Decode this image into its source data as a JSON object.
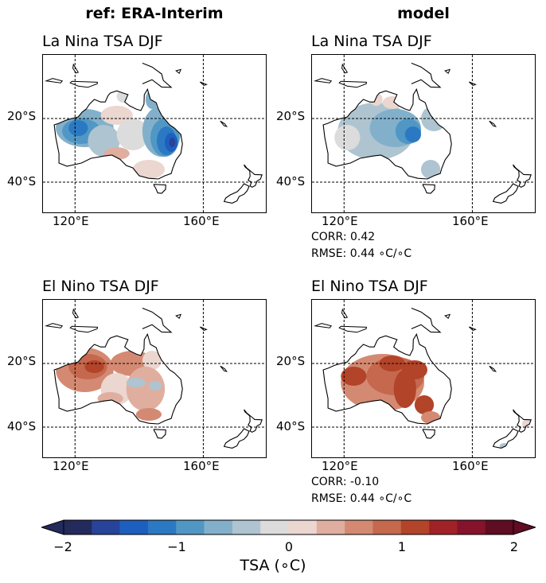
{
  "columns": {
    "ref": "ref: ERA-Interim",
    "model": "model"
  },
  "panels": [
    {
      "id": "ref-lanina",
      "title": "La Nina TSA DJF",
      "pattern": "lanina_ref"
    },
    {
      "id": "model-lanina",
      "title": "La Nina TSA DJF",
      "pattern": "lanina_model",
      "corr": "CORR: 0.42",
      "rmse": "RMSE: 0.44 ∘C/∘C"
    },
    {
      "id": "ref-elnino",
      "title": "El Nino TSA DJF",
      "pattern": "elnino_ref"
    },
    {
      "id": "model-elnino",
      "title": "El Nino TSA DJF",
      "pattern": "elnino_model",
      "corr": "CORR: -0.10",
      "rmse": "RMSE: 0.44 ∘C/∘C"
    }
  ],
  "axes": {
    "yticks": [
      "20°S",
      "40°S"
    ],
    "xticks": [
      "120°E",
      "160°E"
    ]
  },
  "colorbar": {
    "label": "TSA (∘C)",
    "ticks": [
      "−2",
      "−1",
      "0",
      "1",
      "2"
    ],
    "levels": [
      -2,
      -1.75,
      -1.5,
      -1.25,
      -1,
      -0.75,
      -0.5,
      -0.25,
      0,
      0.25,
      0.5,
      0.75,
      1,
      1.25,
      1.5,
      1.75,
      2
    ],
    "colors": [
      "#232a5c",
      "#27449a",
      "#1d5fbf",
      "#2b79c2",
      "#5197c5",
      "#82b0cb",
      "#aec4d1",
      "#dcdcdc",
      "#ebd6d0",
      "#e0ae9f",
      "#d48a72",
      "#c5684d",
      "#b24429",
      "#a02227",
      "#85132b",
      "#5e0d22"
    ]
  },
  "chart_data": {
    "type": "heatmap",
    "variable": "TSA",
    "unit": "∘C",
    "region": {
      "lon": [
        110,
        180
      ],
      "lat": [
        -50,
        0
      ]
    },
    "color_range": [
      -2,
      2
    ],
    "maps": [
      {
        "panel": "ref: ERA-Interim",
        "title": "La Nina TSA DJF",
        "summary": "cooling over western and eastern Australia, strongest about -1.5 to -2 in the east near 150°E, 25°S; weak warming in the north-central interior"
      },
      {
        "panel": "model",
        "title": "La Nina TSA DJF",
        "summary": "broad cooling across Australia, strongest about -1 in the east-central interior",
        "corr": 0.42,
        "rmse": 0.44
      },
      {
        "panel": "ref: ERA-Interim",
        "title": "El Nino TSA DJF",
        "summary": "warming over the northwest up to about +1.25; near-neutral to weak cooling in the center and south"
      },
      {
        "panel": "model",
        "title": "El Nino TSA DJF",
        "summary": "widespread warming about +0.5 to +1 across the continent, strongest along a central band",
        "corr": -0.1,
        "rmse": 0.44
      }
    ]
  }
}
